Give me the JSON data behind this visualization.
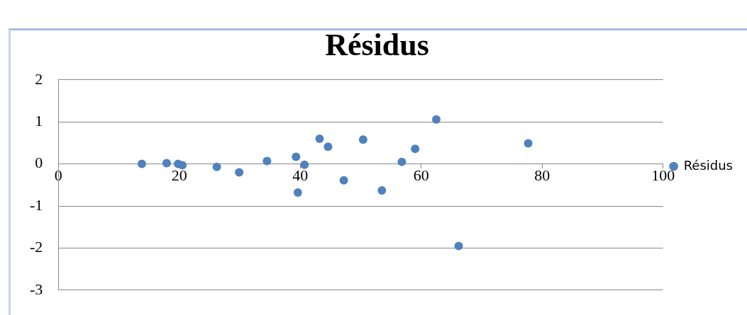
{
  "chart_data": {
    "type": "scatter",
    "title": "Résidus",
    "x": [
      13.8,
      17.9,
      19.8,
      20.5,
      26.2,
      29.9,
      34.5,
      39.3,
      39.6,
      40.7,
      43.2,
      44.6,
      47.2,
      50.4,
      53.5,
      56.8,
      59.0,
      62.5,
      66.2,
      77.7
    ],
    "series": [
      {
        "name": "Résidus",
        "color": "#4f81bd",
        "values": [
          0.0,
          0.02,
          0.0,
          -0.03,
          -0.07,
          -0.2,
          0.07,
          0.17,
          -0.68,
          -0.02,
          0.6,
          0.41,
          -0.39,
          0.58,
          -0.63,
          0.05,
          0.36,
          1.06,
          -1.95,
          0.49
        ]
      }
    ],
    "xlim": [
      0,
      100
    ],
    "xticks": [
      0,
      20,
      40,
      60,
      80,
      100
    ],
    "ylim": [
      -3,
      2
    ],
    "yticks": [
      -3,
      -2,
      -1,
      0,
      1,
      2
    ],
    "grid": "y",
    "legend": "right",
    "marker": "circle"
  }
}
